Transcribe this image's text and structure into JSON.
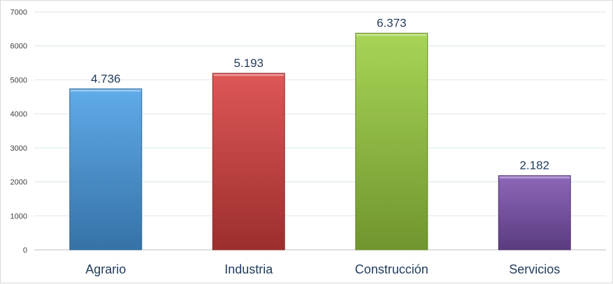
{
  "chart_data": {
    "type": "bar",
    "categories": [
      "Agrario",
      "Industria",
      "Construcción",
      "Servicios"
    ],
    "values": [
      4736,
      5193,
      6373,
      2182
    ],
    "data_labels": [
      "4.736",
      "5.193",
      "6.373",
      "2.182"
    ],
    "y_ticks": [
      "0",
      "1000",
      "2000",
      "3000",
      "4000",
      "5000",
      "6000",
      "7000"
    ],
    "ylim": [
      0,
      7000
    ],
    "title": "",
    "xlabel": "",
    "ylabel": "",
    "grid": true,
    "legend": "none",
    "colors": [
      "#4a9fe6",
      "#d94040",
      "#9bcf40",
      "#7d52b0"
    ]
  }
}
